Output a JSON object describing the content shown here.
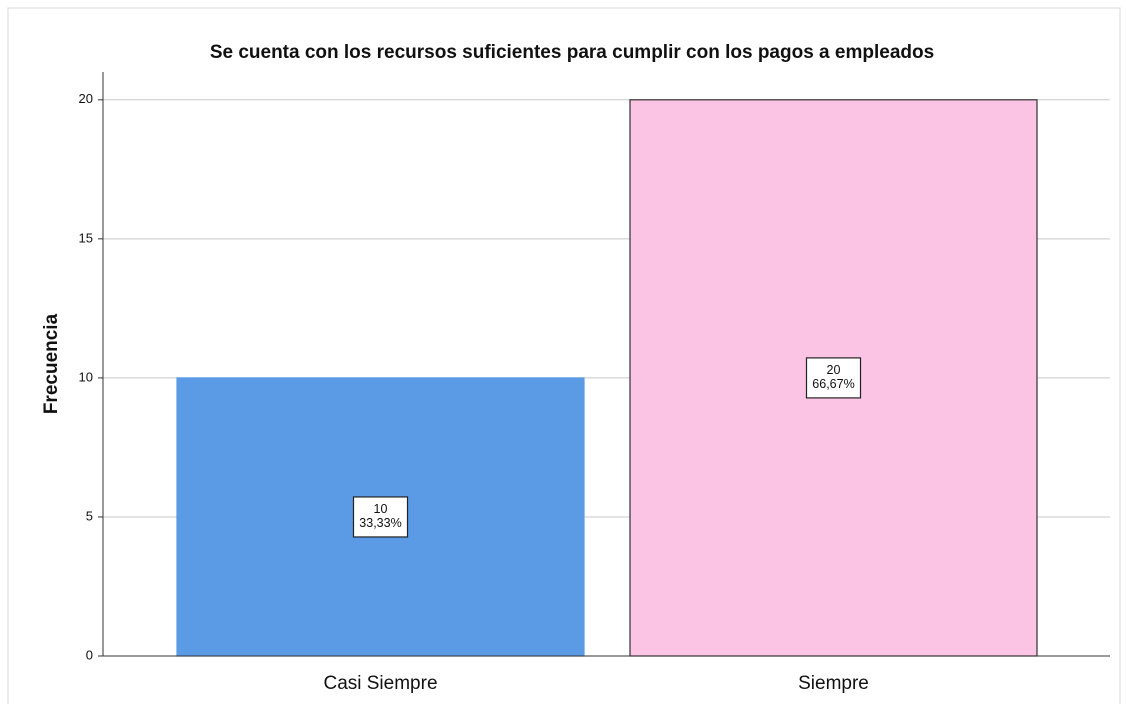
{
  "chart_data": {
    "type": "bar",
    "title": "Se cuenta con los recursos suficientes para cumplir con los pagos a empleados",
    "ylabel": "Frecuencia",
    "categories": [
      "Casi Siempre",
      "Siempre"
    ],
    "values": [
      10,
      20
    ],
    "percents": [
      33.33,
      66.67
    ],
    "percent_labels": [
      "33,33%",
      "66,67%"
    ],
    "colors": [
      "#5b9be6",
      "#fcc4e4"
    ],
    "edgecolors": [
      "#5b9be6",
      "#333333"
    ],
    "ylim": [
      0,
      21
    ],
    "yticks": [
      0,
      5,
      10,
      15,
      20
    ],
    "grid": true
  }
}
